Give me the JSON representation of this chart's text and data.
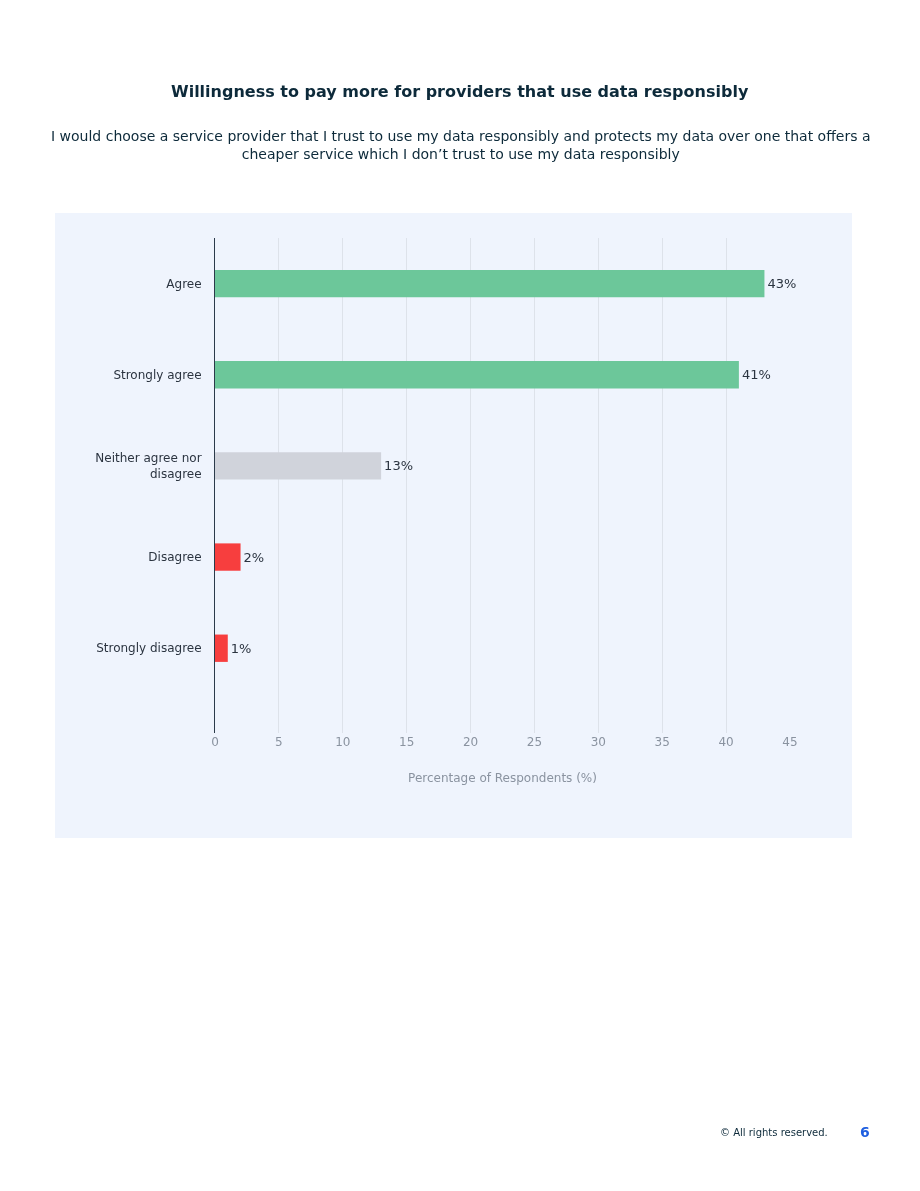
{
  "chart_data": {
    "type": "bar",
    "orientation": "horizontal",
    "title": "Willingness to pay more for providers that use data responsibly",
    "subtitle": "I would choose a service provider that I trust to use my data responsibly and protects my data over one that offers a\ncheaper service which I don’t trust to use my data responsibly",
    "xlabel": "Percentage of Respondents (%)",
    "categories": [
      "Agree",
      "Strongly agree",
      "Neither agree nor\ndisagree",
      "Disagree",
      "Strongly disagree"
    ],
    "values": [
      43,
      41,
      13,
      2,
      1
    ],
    "colors": [
      "#6cc79a",
      "#6cc79a",
      "#d0d3db",
      "#f73e3e",
      "#f73e3e"
    ],
    "value_labels": [
      "43%",
      "41%",
      "13%",
      "2%",
      "1%"
    ],
    "xlim": [
      0,
      45
    ],
    "xticks": [
      0,
      5,
      10,
      15,
      20,
      25,
      30,
      35,
      40,
      45
    ],
    "grid": "x",
    "annotations": [
      "© All rights reserved.",
      "6"
    ]
  }
}
